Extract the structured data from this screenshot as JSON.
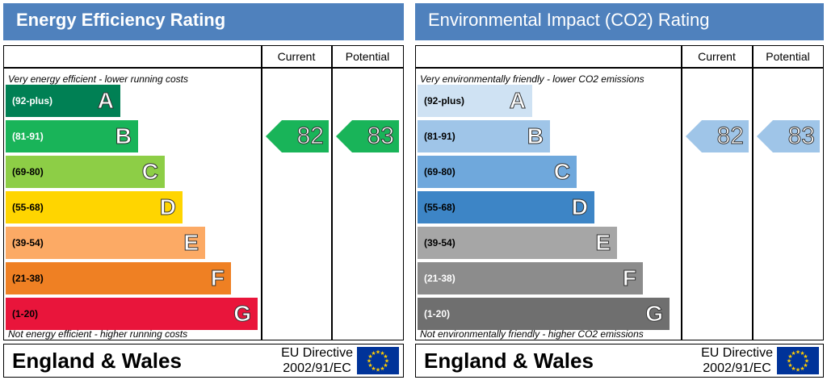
{
  "chart_data": [
    {
      "type": "bar",
      "title": "Energy Efficiency Rating",
      "column_headers": [
        "Current",
        "Potential"
      ],
      "top_note": "Very energy efficient - lower running costs",
      "bottom_note": "Not energy efficient - higher running costs",
      "bands": [
        {
          "range": "(92-plus)",
          "letter": "A",
          "color": "#008054",
          "text_color": "#ffffff"
        },
        {
          "range": "(81-91)",
          "letter": "B",
          "color": "#19b459",
          "text_color": "#ffffff"
        },
        {
          "range": "(69-80)",
          "letter": "C",
          "color": "#8dce46",
          "text_color": "#000000"
        },
        {
          "range": "(55-68)",
          "letter": "D",
          "color": "#ffd500",
          "text_color": "#000000"
        },
        {
          "range": "(39-54)",
          "letter": "E",
          "color": "#fcaa65",
          "text_color": "#000000"
        },
        {
          "range": "(21-38)",
          "letter": "F",
          "color": "#ef8023",
          "text_color": "#000000"
        },
        {
          "range": "(1-20)",
          "letter": "G",
          "color": "#e9153b",
          "text_color": "#000000"
        }
      ],
      "current": {
        "value": 82,
        "band": "B",
        "color": "#19b459"
      },
      "potential": {
        "value": 83,
        "band": "B",
        "color": "#19b459"
      }
    },
    {
      "type": "bar",
      "title": "Environmental Impact (CO2) Rating",
      "column_headers": [
        "Current",
        "Potential"
      ],
      "top_note": "Very environmentally friendly - lower CO2 emissions",
      "bottom_note": "Not environmentally friendly - higher CO2 emissions",
      "bands": [
        {
          "range": "(92-plus)",
          "letter": "A",
          "color": "#cfe2f3",
          "text_color": "#000000"
        },
        {
          "range": "(81-91)",
          "letter": "B",
          "color": "#9fc5e8",
          "text_color": "#000000"
        },
        {
          "range": "(69-80)",
          "letter": "C",
          "color": "#6fa8dc",
          "text_color": "#000000"
        },
        {
          "range": "(55-68)",
          "letter": "D",
          "color": "#3d85c6",
          "text_color": "#000000"
        },
        {
          "range": "(39-54)",
          "letter": "E",
          "color": "#a6a6a6",
          "text_color": "#000000"
        },
        {
          "range": "(21-38)",
          "letter": "F",
          "color": "#8c8c8c",
          "text_color": "#ffffff"
        },
        {
          "range": "(1-20)",
          "letter": "G",
          "color": "#6f6f6f",
          "text_color": "#ffffff"
        }
      ],
      "current": {
        "value": 82,
        "band": "B",
        "color": "#9fc5e8"
      },
      "potential": {
        "value": 83,
        "band": "B",
        "color": "#9fc5e8"
      }
    }
  ],
  "footer": {
    "country": "England & Wales",
    "directive_line1": "EU Directive",
    "directive_line2": "2002/91/EC",
    "flag_icon": "eu-flag-icon"
  }
}
